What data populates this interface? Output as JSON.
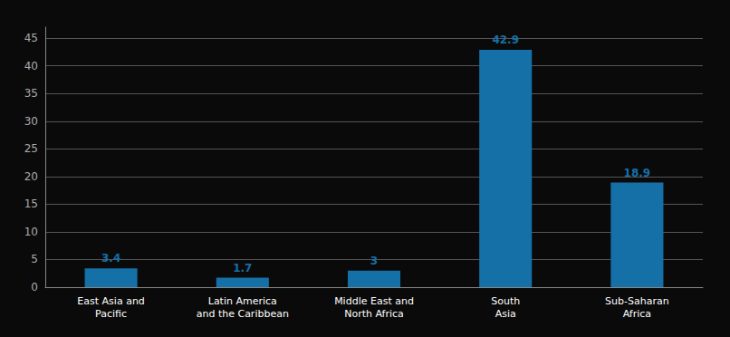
{
  "chart_data": {
    "type": "bar",
    "categories": [
      "East Asia and\nPacific",
      "Latin America\nand the Caribbean",
      "Middle East and\nNorth Africa",
      "South\nAsia",
      "Sub-Saharan\nAfrica"
    ],
    "values": [
      3.4,
      1.7,
      3,
      42.9,
      18.9
    ],
    "color": "#1570a8",
    "ylim": [
      0,
      47
    ],
    "yticks": [
      0,
      5,
      10,
      15,
      20,
      25,
      30,
      35,
      40,
      45
    ],
    "grid": true,
    "data_labels": true
  }
}
